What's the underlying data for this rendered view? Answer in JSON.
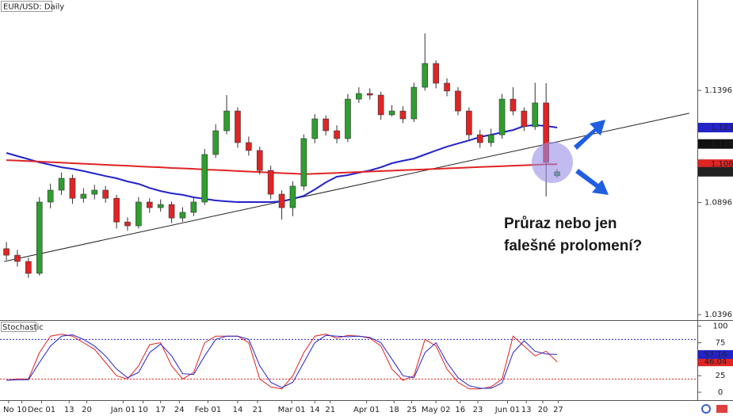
{
  "chart_data": [
    {
      "type": "candlestick",
      "title": "EUR/USD: Daily",
      "xlim": [
        -0.58,
        62.73
      ],
      "ylim": [
        1.0375,
        1.1799
      ],
      "yticks": [
        1.0396,
        1.0896,
        1.1396
      ],
      "xticks": [
        {
          "value": 0.2,
          "label": "No"
        },
        {
          "value": 1.4,
          "label": "10"
        },
        {
          "value": 3.2,
          "label": "Dec 01"
        },
        {
          "value": 5.7,
          "label": "13"
        },
        {
          "value": 7.3,
          "label": "20"
        },
        {
          "value": 10.6,
          "label": "Jan 01"
        },
        {
          "value": 12.4,
          "label": "10"
        },
        {
          "value": 14.0,
          "label": "17"
        },
        {
          "value": 15.7,
          "label": "24"
        },
        {
          "value": 18.3,
          "label": "Feb 01"
        },
        {
          "value": 21.0,
          "label": "14"
        },
        {
          "value": 22.8,
          "label": "21"
        },
        {
          "value": 25.9,
          "label": "Mar 01"
        },
        {
          "value": 28.0,
          "label": "14"
        },
        {
          "value": 29.4,
          "label": "21"
        },
        {
          "value": 32.7,
          "label": "Apr 01"
        },
        {
          "value": 35.2,
          "label": "18"
        },
        {
          "value": 36.8,
          "label": "25"
        },
        {
          "value": 39.0,
          "label": "May 02"
        },
        {
          "value": 41.2,
          "label": "16"
        },
        {
          "value": 42.8,
          "label": "23"
        },
        {
          "value": 45.5,
          "label": "Jun 01"
        },
        {
          "value": 47.2,
          "label": "13"
        },
        {
          "value": 48.7,
          "label": "20"
        },
        {
          "value": 50.1,
          "label": "27"
        }
      ],
      "up_color": "#2f9e2f",
      "down_color": "#e02424",
      "open": [
        1.069,
        1.0661,
        1.0633,
        1.058,
        1.0898,
        1.0951,
        1.1004,
        1.0915,
        1.0933,
        1.0951,
        1.0915,
        1.0809,
        1.0792,
        1.0898,
        1.0873,
        1.0887,
        1.0827,
        1.0852,
        1.0898,
        1.111,
        1.1216,
        1.1304,
        1.1163,
        1.1128,
        1.1039,
        1.0933,
        1.0873,
        1.0969,
        1.1181,
        1.1269,
        1.1216,
        1.1181,
        1.1357,
        1.1382,
        1.1375,
        1.1287,
        1.1304,
        1.1269,
        1.141,
        1.1516,
        1.1428,
        1.1393,
        1.1304,
        1.1198,
        1.1163,
        1.1198,
        1.1357,
        1.1304,
        1.1234,
        1.134,
        1.1015
      ],
      "high": [
        1.072,
        1.0685,
        1.065,
        1.092,
        1.098,
        1.103,
        1.102,
        1.096,
        1.0975,
        1.097,
        1.093,
        1.083,
        1.092,
        1.0915,
        1.091,
        1.09,
        1.0875,
        1.092,
        1.1135,
        1.1245,
        1.1375,
        1.132,
        1.119,
        1.1145,
        1.106,
        1.095,
        1.099,
        1.12,
        1.129,
        1.1285,
        1.124,
        1.138,
        1.141,
        1.1405,
        1.139,
        1.133,
        1.1325,
        1.143,
        1.165,
        1.153,
        1.145,
        1.141,
        1.132,
        1.122,
        1.1225,
        1.138,
        1.141,
        1.132,
        1.143,
        1.1428,
        1.1045
      ],
      "low": [
        1.064,
        1.061,
        1.056,
        1.057,
        1.087,
        1.093,
        1.089,
        1.0895,
        1.091,
        1.0895,
        1.078,
        1.077,
        1.078,
        1.085,
        1.0855,
        1.0805,
        1.081,
        1.0835,
        1.0885,
        1.1095,
        1.12,
        1.114,
        1.1105,
        1.102,
        1.091,
        1.082,
        1.0835,
        1.095,
        1.116,
        1.1195,
        1.116,
        1.1165,
        1.134,
        1.1355,
        1.1265,
        1.128,
        1.125,
        1.1255,
        1.1395,
        1.1405,
        1.137,
        1.1285,
        1.1175,
        1.114,
        1.1145,
        1.118,
        1.1285,
        1.1215,
        1.122,
        1.0923,
        1.1005
      ],
      "close": [
        1.0661,
        1.0633,
        1.058,
        1.0898,
        1.0951,
        1.1004,
        1.0915,
        1.0933,
        1.0951,
        1.0915,
        1.0809,
        1.0792,
        1.0898,
        1.0873,
        1.0887,
        1.0827,
        1.0852,
        1.0898,
        1.111,
        1.1216,
        1.1304,
        1.1163,
        1.1128,
        1.1039,
        1.0933,
        1.0873,
        1.0969,
        1.1181,
        1.1269,
        1.1216,
        1.1181,
        1.1357,
        1.1382,
        1.1375,
        1.1287,
        1.1304,
        1.1269,
        1.141,
        1.1516,
        1.1428,
        1.1393,
        1.1304,
        1.1198,
        1.1163,
        1.1198,
        1.1357,
        1.1304,
        1.1234,
        1.134,
        1.1075,
        1.1033
      ],
      "moving_averages": [
        {
          "color": "#2323c8",
          "values": [
            1.1117,
            1.1103,
            1.1089,
            1.1075,
            1.1064,
            1.1053,
            1.1046,
            1.1036,
            1.1025,
            1.1014,
            1.1004,
            1.099,
            1.0979,
            1.0961,
            1.0947,
            1.0937,
            1.093,
            1.0919,
            1.0912,
            1.0905,
            1.0901,
            1.0898,
            1.0898,
            1.0898,
            1.0898,
            1.0901,
            1.0912,
            1.0926,
            1.0954,
            1.0986,
            1.1011,
            1.1018,
            1.1029,
            1.1039,
            1.1053,
            1.1071,
            1.1082,
            1.1092,
            1.111,
            1.1128,
            1.1145,
            1.1159,
            1.1173,
            1.1188,
            1.1198,
            1.1209,
            1.1219,
            1.1237,
            1.1241,
            1.1237,
            1.123
          ]
        },
        {
          "color": "#e02424",
          "values": [
            1.1085,
            1.1083,
            1.1081,
            1.1078,
            1.1076,
            1.1074,
            1.1071,
            1.1069,
            1.1067,
            1.1064,
            1.1062,
            1.106,
            1.1057,
            1.1055,
            1.1053,
            1.105,
            1.1048,
            1.1046,
            1.1043,
            1.1041,
            1.1039,
            1.1036,
            1.1034,
            1.1032,
            1.1029,
            1.1027,
            1.1025,
            1.1022,
            1.1024,
            1.1026,
            1.1028,
            1.103,
            1.1032,
            1.1034,
            1.1036,
            1.1038,
            1.104,
            1.1042,
            1.1044,
            1.1046,
            1.1048,
            1.105,
            1.1052,
            1.1054,
            1.1056,
            1.1058,
            1.106,
            1.1062,
            1.1064,
            1.1066,
            1.1067
          ]
        }
      ],
      "trendline": {
        "color": "#222222",
        "x": [
          -0.2,
          62.0
        ],
        "y": [
          1.0633,
          1.1294
        ]
      },
      "price_markers": [
        {
          "value": 1.123,
          "label": "1.1230",
          "color": "#2323c8"
        },
        {
          "value": 1.1157,
          "color": "#111111"
        },
        {
          "value": 1.1067,
          "color": "#e02424"
        },
        {
          "value": 1.1033,
          "color": "#222222"
        }
      ],
      "annotation": [
        "Průraz nebo jen",
        "falešné prolomení?"
      ]
    },
    {
      "type": "line",
      "title": "Stochastic",
      "xlim": [
        -0.58,
        62.73
      ],
      "ylim": [
        -12,
        108
      ],
      "yticks": [
        100,
        75,
        50,
        25,
        0
      ],
      "levels": [
        {
          "value": 80,
          "color": "#2323c8"
        },
        {
          "value": 20,
          "color": "#e02424"
        }
      ],
      "series": [
        {
          "color": "#e02424",
          "values": [
            18,
            20,
            20,
            60,
            85,
            88,
            85,
            75,
            65,
            45,
            25,
            20,
            40,
            72,
            75,
            40,
            20,
            30,
            75,
            85,
            85,
            85,
            75,
            20,
            8,
            5,
            25,
            60,
            85,
            88,
            82,
            86,
            85,
            82,
            70,
            35,
            18,
            25,
            80,
            70,
            35,
            15,
            5,
            5,
            8,
            20,
            85,
            70,
            55,
            62,
            46.04
          ]
        },
        {
          "color": "#2323c8",
          "values": [
            18,
            19,
            19,
            45,
            70,
            85,
            87,
            80,
            70,
            55,
            35,
            22,
            30,
            60,
            73,
            55,
            28,
            27,
            55,
            80,
            85,
            85,
            80,
            40,
            15,
            7,
            15,
            45,
            75,
            86,
            85,
            84,
            85,
            83,
            75,
            50,
            25,
            22,
            60,
            75,
            45,
            22,
            10,
            6,
            6,
            14,
            60,
            78,
            62,
            58,
            57.16
          ]
        }
      ]
    }
  ]
}
